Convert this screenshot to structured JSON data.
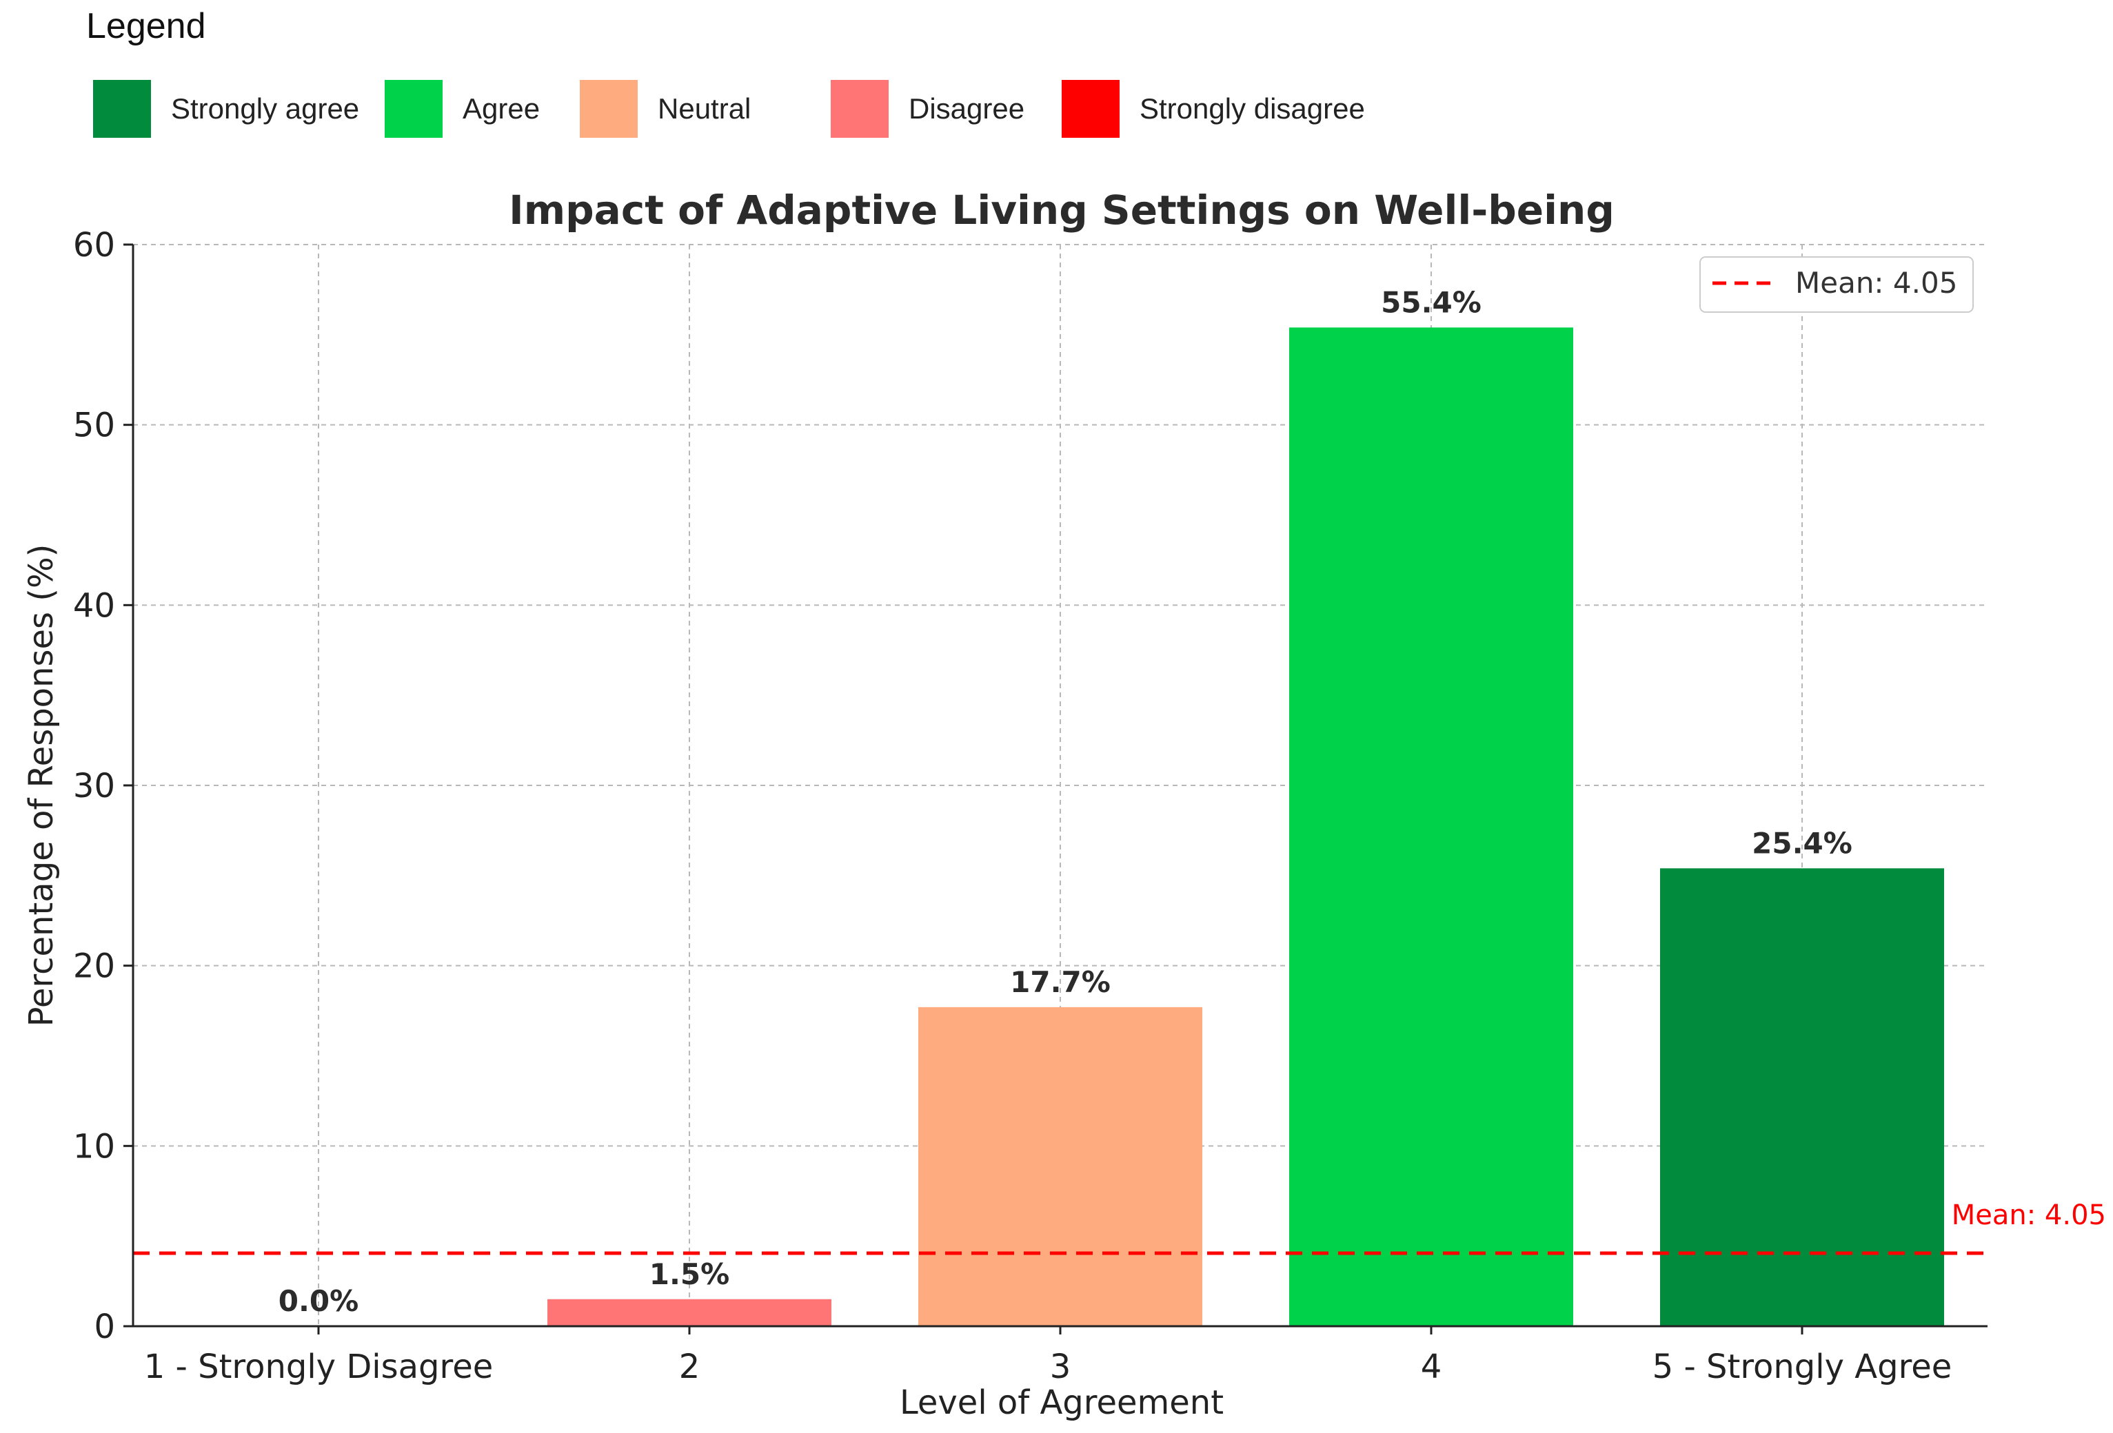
{
  "legend": {
    "title": "Legend",
    "items": [
      {
        "label": "Strongly agree",
        "color": "#008c3c"
      },
      {
        "label": "Agree",
        "color": "#00d24a"
      },
      {
        "label": "Neutral",
        "color": "#ffab80"
      },
      {
        "label": "Disagree",
        "color": "#ff7575"
      },
      {
        "label": "Strongly disagree",
        "color": "#ff0000"
      }
    ]
  },
  "chart_data": {
    "type": "bar",
    "title": "Impact of Adaptive Living Settings on Well-being",
    "xlabel": "Level of Agreement",
    "ylabel": "Percentage of Responses (%)",
    "categories": [
      "1 - Strongly Disagree",
      "2",
      "3",
      "4",
      "5 - Strongly Agree"
    ],
    "values": [
      0.0,
      1.5,
      17.7,
      55.4,
      25.4
    ],
    "data_labels": [
      "0.0%",
      "1.5%",
      "17.7%",
      "55.4%",
      "25.4%"
    ],
    "colors": [
      "#ff0000",
      "#ff7575",
      "#ffab80",
      "#00d24a",
      "#008c3c"
    ],
    "ylim": [
      0,
      60
    ],
    "yticks": [
      0,
      10,
      20,
      30,
      40,
      50,
      60
    ],
    "grid": true,
    "mean": {
      "value": 4.05,
      "legend_label": "Mean: 4.05",
      "annotation": "Mean: 4.05",
      "color": "#ff0000"
    },
    "legend_position": "top-right"
  }
}
